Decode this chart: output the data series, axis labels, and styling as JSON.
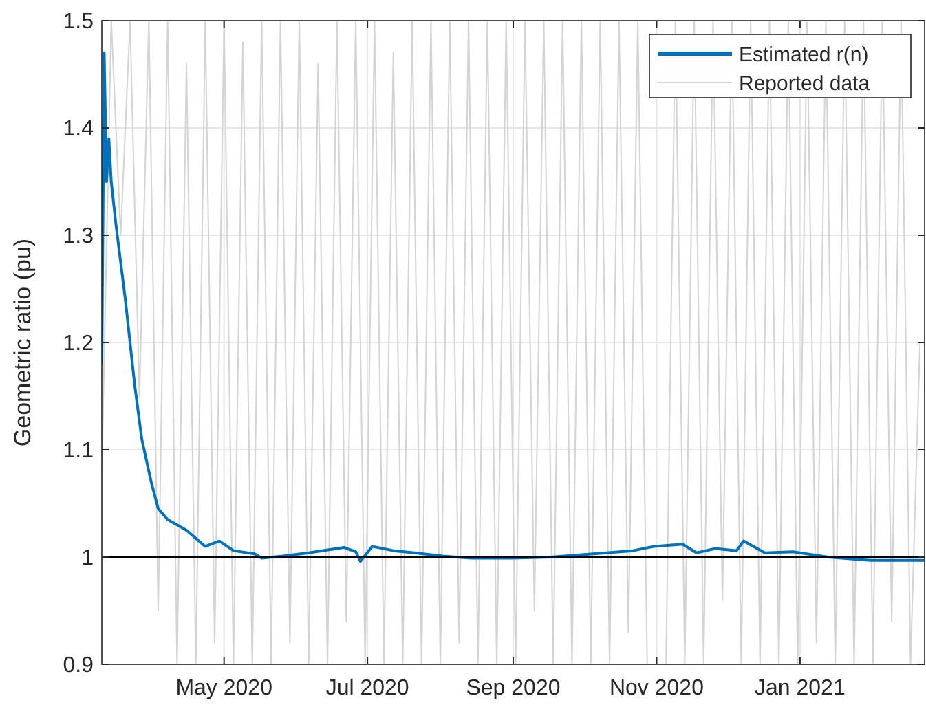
{
  "chart_data": {
    "type": "line",
    "ylabel": "Geometric ratio (pu)",
    "xlim": [
      "2020-03-10",
      "2021-02-23"
    ],
    "xticks": [
      {
        "value": "2020-05-01",
        "label": "May 2020"
      },
      {
        "value": "2020-07-01",
        "label": "Jul 2020"
      },
      {
        "value": "2020-09-01",
        "label": "Sep 2020"
      },
      {
        "value": "2020-11-01",
        "label": "Nov 2020"
      },
      {
        "value": "2021-01-01",
        "label": "Jan 2021"
      }
    ],
    "ylim": [
      0.9,
      1.5
    ],
    "yticks": [
      0.9,
      1,
      1.1,
      1.2,
      1.3,
      1.4,
      1.5
    ],
    "grid": true,
    "legend": "top right",
    "ref_lines": [
      {
        "axis": "y",
        "value": 1,
        "color": "#000000"
      }
    ],
    "series": [
      {
        "name": "Estimated r(n)",
        "color": "#0072bd",
        "x": [
          "2020-03-10",
          "2020-03-11",
          "2020-03-12",
          "2020-03-13",
          "2020-03-14",
          "2020-03-16",
          "2020-03-20",
          "2020-03-24",
          "2020-03-27",
          "2020-03-31",
          "2020-04-03",
          "2020-04-07",
          "2020-04-15",
          "2020-04-23",
          "2020-04-29",
          "2020-05-05",
          "2020-05-14",
          "2020-05-17",
          "2020-05-26",
          "2020-06-06",
          "2020-06-21",
          "2020-06-26",
          "2020-06-28",
          "2020-07-03",
          "2020-07-12",
          "2020-07-21",
          "2020-08-02",
          "2020-08-14",
          "2020-08-31",
          "2020-09-17",
          "2020-10-05",
          "2020-10-22",
          "2020-10-31",
          "2020-11-12",
          "2020-11-18",
          "2020-11-26",
          "2020-12-05",
          "2020-12-08",
          "2020-12-17",
          "2020-12-29",
          "2021-01-13",
          "2021-01-31",
          "2021-02-23"
        ],
        "values": [
          1.18,
          1.47,
          1.35,
          1.39,
          1.35,
          1.31,
          1.24,
          1.16,
          1.11,
          1.07,
          1.045,
          1.035,
          1.025,
          1.01,
          1.015,
          1.006,
          1.003,
          0.999,
          1.001,
          1.004,
          1.009,
          1.005,
          0.996,
          1.01,
          1.006,
          1.004,
          1.001,
          0.999,
          0.999,
          1.0,
          1.003,
          1.006,
          1.01,
          1.012,
          1.004,
          1.008,
          1.006,
          1.015,
          1.004,
          1.005,
          1.0,
          0.997,
          0.997
        ]
      },
      {
        "name": "Reported data",
        "color": "#d3d3d3",
        "x": [
          "2020-03-10",
          "2020-03-14",
          "2020-03-18",
          "2020-03-22",
          "2020-03-26",
          "2020-03-30",
          "2020-04-03",
          "2020-04-07",
          "2020-04-11",
          "2020-04-15",
          "2020-04-19",
          "2020-04-23",
          "2020-04-27",
          "2020-05-01",
          "2020-05-05",
          "2020-05-09",
          "2020-05-13",
          "2020-05-17",
          "2020-05-21",
          "2020-05-25",
          "2020-05-29",
          "2020-06-02",
          "2020-06-06",
          "2020-06-10",
          "2020-06-14",
          "2020-06-18",
          "2020-06-22",
          "2020-06-26",
          "2020-06-30",
          "2020-07-04",
          "2020-07-08",
          "2020-07-12",
          "2020-07-16",
          "2020-07-20",
          "2020-07-24",
          "2020-07-28",
          "2020-08-01",
          "2020-08-05",
          "2020-08-09",
          "2020-08-13",
          "2020-08-17",
          "2020-08-21",
          "2020-08-25",
          "2020-08-29",
          "2020-09-02",
          "2020-09-06",
          "2020-09-10",
          "2020-09-14",
          "2020-09-18",
          "2020-09-22",
          "2020-09-26",
          "2020-09-30",
          "2020-10-04",
          "2020-10-08",
          "2020-10-12",
          "2020-10-16",
          "2020-10-20",
          "2020-10-24",
          "2020-10-28",
          "2020-11-01",
          "2020-11-05",
          "2020-11-09",
          "2020-11-13",
          "2020-11-17",
          "2020-11-21",
          "2020-11-25",
          "2020-11-29",
          "2020-12-03",
          "2020-12-07",
          "2020-12-11",
          "2020-12-15",
          "2020-12-19",
          "2020-12-23",
          "2020-12-27",
          "2020-12-31",
          "2021-01-04",
          "2021-01-08",
          "2021-01-12",
          "2021-01-16",
          "2021-01-20",
          "2021-01-24",
          "2021-01-28",
          "2021-02-01",
          "2021-02-05",
          "2021-02-09",
          "2021-02-13",
          "2021-02-17",
          "2021-02-21"
        ],
        "values": [
          1.08,
          1.5,
          1.3,
          1.5,
          1.15,
          1.5,
          0.95,
          1.5,
          0.9,
          1.46,
          0.9,
          1.5,
          0.92,
          1.5,
          0.9,
          1.48,
          0.9,
          1.5,
          0.9,
          1.5,
          0.92,
          1.5,
          0.9,
          1.46,
          0.9,
          1.5,
          0.94,
          1.5,
          0.9,
          1.5,
          0.9,
          1.47,
          0.9,
          1.5,
          0.9,
          1.5,
          0.9,
          1.5,
          0.92,
          1.5,
          0.9,
          1.5,
          0.9,
          1.5,
          0.9,
          1.5,
          0.95,
          1.5,
          0.9,
          1.5,
          0.9,
          1.5,
          0.9,
          1.5,
          0.9,
          1.5,
          0.93,
          1.5,
          0.9,
          null,
          0.9,
          1.5,
          0.9,
          1.5,
          0.9,
          1.5,
          0.96,
          1.5,
          0.9,
          1.5,
          0.9,
          1.5,
          0.9,
          1.5,
          0.9,
          1.5,
          0.92,
          1.5,
          0.9,
          1.5,
          0.9,
          1.5,
          0.9,
          1.5,
          0.94,
          1.5,
          0.9,
          1.2
        ]
      }
    ]
  }
}
